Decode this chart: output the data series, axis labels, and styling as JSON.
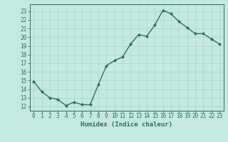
{
  "x": [
    0,
    1,
    2,
    3,
    4,
    5,
    6,
    7,
    8,
    9,
    10,
    11,
    12,
    13,
    14,
    15,
    16,
    17,
    18,
    19,
    20,
    21,
    22,
    23
  ],
  "y": [
    14.9,
    13.7,
    13.0,
    12.8,
    12.1,
    12.5,
    12.2,
    12.2,
    14.5,
    16.7,
    17.3,
    17.7,
    19.2,
    20.3,
    20.1,
    21.4,
    23.1,
    22.7,
    21.8,
    21.1,
    20.4,
    20.4,
    19.8,
    19.2
  ],
  "line_color": "#2d6e63",
  "marker": "D",
  "marker_size": 2.0,
  "bg_color": "#c5e8e0",
  "grid_color": "#b0d8ce",
  "xlabel": "Humidex (Indice chaleur)",
  "xlim": [
    -0.5,
    23.5
  ],
  "ylim": [
    11.5,
    23.8
  ],
  "yticks": [
    12,
    13,
    14,
    15,
    16,
    17,
    18,
    19,
    20,
    21,
    22,
    23
  ],
  "xticks": [
    0,
    1,
    2,
    3,
    4,
    5,
    6,
    7,
    8,
    9,
    10,
    11,
    12,
    13,
    14,
    15,
    16,
    17,
    18,
    19,
    20,
    21,
    22,
    23
  ],
  "tick_color": "#2d6e63",
  "label_color": "#2d6e63",
  "xlabel_fontsize": 6.5,
  "tick_fontsize": 5.5,
  "line_width": 1.0
}
